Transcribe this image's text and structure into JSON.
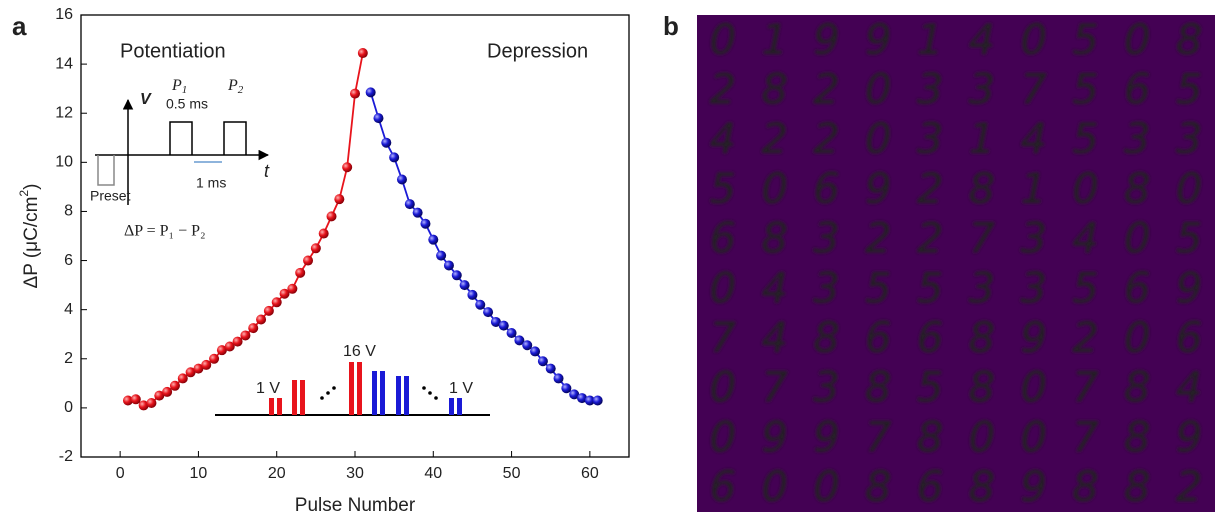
{
  "chart_data": [
    {
      "type": "line",
      "panel": "a",
      "xlabel": "Pulse Number",
      "ylabel": {
        "text": "ΔP (μC/cm",
        "sup": "2",
        "end": ")"
      },
      "xlim": [
        -5,
        65
      ],
      "ylim": [
        -2,
        16
      ],
      "xticks": [
        0,
        10,
        20,
        30,
        40,
        50,
        60
      ],
      "yticks": [
        -2,
        0,
        2,
        4,
        6,
        8,
        10,
        12,
        14,
        16
      ],
      "series": [
        {
          "name": "Potentiation",
          "color": "#e8141c",
          "x": [
            1,
            2,
            3,
            4,
            5,
            6,
            7,
            8,
            9,
            10,
            11,
            12,
            13,
            14,
            15,
            16,
            17,
            18,
            19,
            20,
            21,
            22,
            23,
            24,
            25,
            26,
            27,
            28,
            29,
            30,
            31
          ],
          "values": [
            0.3,
            0.35,
            0.1,
            0.2,
            0.5,
            0.65,
            0.9,
            1.2,
            1.45,
            1.6,
            1.75,
            2.0,
            2.35,
            2.5,
            2.7,
            2.95,
            3.25,
            3.6,
            3.95,
            4.3,
            4.65,
            4.85,
            5.5,
            6.0,
            6.5,
            7.1,
            7.8,
            8.5,
            9.8,
            12.8,
            14.45
          ]
        },
        {
          "name": "Depression",
          "color": "#1a1ad6",
          "x": [
            32,
            33,
            34,
            35,
            36,
            37,
            38,
            39,
            40,
            41,
            42,
            43,
            44,
            45,
            46,
            47,
            48,
            49,
            50,
            51,
            52,
            53,
            54,
            55,
            56,
            57,
            58,
            59,
            60,
            61
          ],
          "values": [
            12.85,
            11.8,
            10.8,
            10.2,
            9.3,
            8.3,
            7.95,
            7.5,
            6.85,
            6.2,
            5.8,
            5.4,
            5.0,
            4.6,
            4.2,
            3.9,
            3.5,
            3.35,
            3.05,
            2.75,
            2.55,
            2.3,
            1.9,
            1.6,
            1.2,
            0.8,
            0.55,
            0.4,
            0.3,
            0.3
          ]
        }
      ],
      "inset": {
        "v": "V",
        "t": "t",
        "p1": {
          "text": "P",
          "sub": "1"
        },
        "p2": {
          "text": "P",
          "sub": "2"
        },
        "width": "0.5 ms",
        "gap": "1 ms",
        "preset": "Preset",
        "formula": "ΔP = P₁ − P₂"
      },
      "pulse_labels": {
        "start": "1 V",
        "peak": "16 V",
        "end": "1 V"
      }
    },
    {
      "type": "image-grid",
      "panel": "b",
      "background": "#440154",
      "color": "#2fb58a",
      "highlight_color": "#e8e419",
      "highlight": [
        [
          0,
          1
        ],
        [
          0,
          4
        ],
        [
          2,
          5
        ],
        [
          3,
          6
        ]
      ],
      "rows": [
        [
          "0",
          "1",
          "9",
          "9",
          "1",
          "4",
          "0",
          "5",
          "0",
          "8"
        ],
        [
          "2",
          "8",
          "2",
          "0",
          "3",
          "3",
          "7",
          "5",
          "6",
          "5"
        ],
        [
          "4",
          "2",
          "2",
          "0",
          "3",
          "1",
          "4",
          "5",
          "3",
          "3"
        ],
        [
          "5",
          "0",
          "6",
          "9",
          "2",
          "8",
          "1",
          "0",
          "8",
          "0"
        ],
        [
          "6",
          "8",
          "3",
          "2",
          "2",
          "7",
          "3",
          "4",
          "0",
          "5"
        ],
        [
          "0",
          "4",
          "3",
          "5",
          "5",
          "3",
          "3",
          "5",
          "6",
          "9"
        ],
        [
          "7",
          "4",
          "8",
          "6",
          "6",
          "8",
          "9",
          "2",
          "0",
          "6"
        ],
        [
          "0",
          "7",
          "3",
          "8",
          "5",
          "8",
          "0",
          "7",
          "8",
          "4"
        ],
        [
          "0",
          "9",
          "9",
          "7",
          "8",
          "0",
          "0",
          "7",
          "8",
          "9"
        ],
        [
          "6",
          "0",
          "0",
          "8",
          "6",
          "8",
          "9",
          "8",
          "8",
          "2"
        ]
      ]
    }
  ]
}
